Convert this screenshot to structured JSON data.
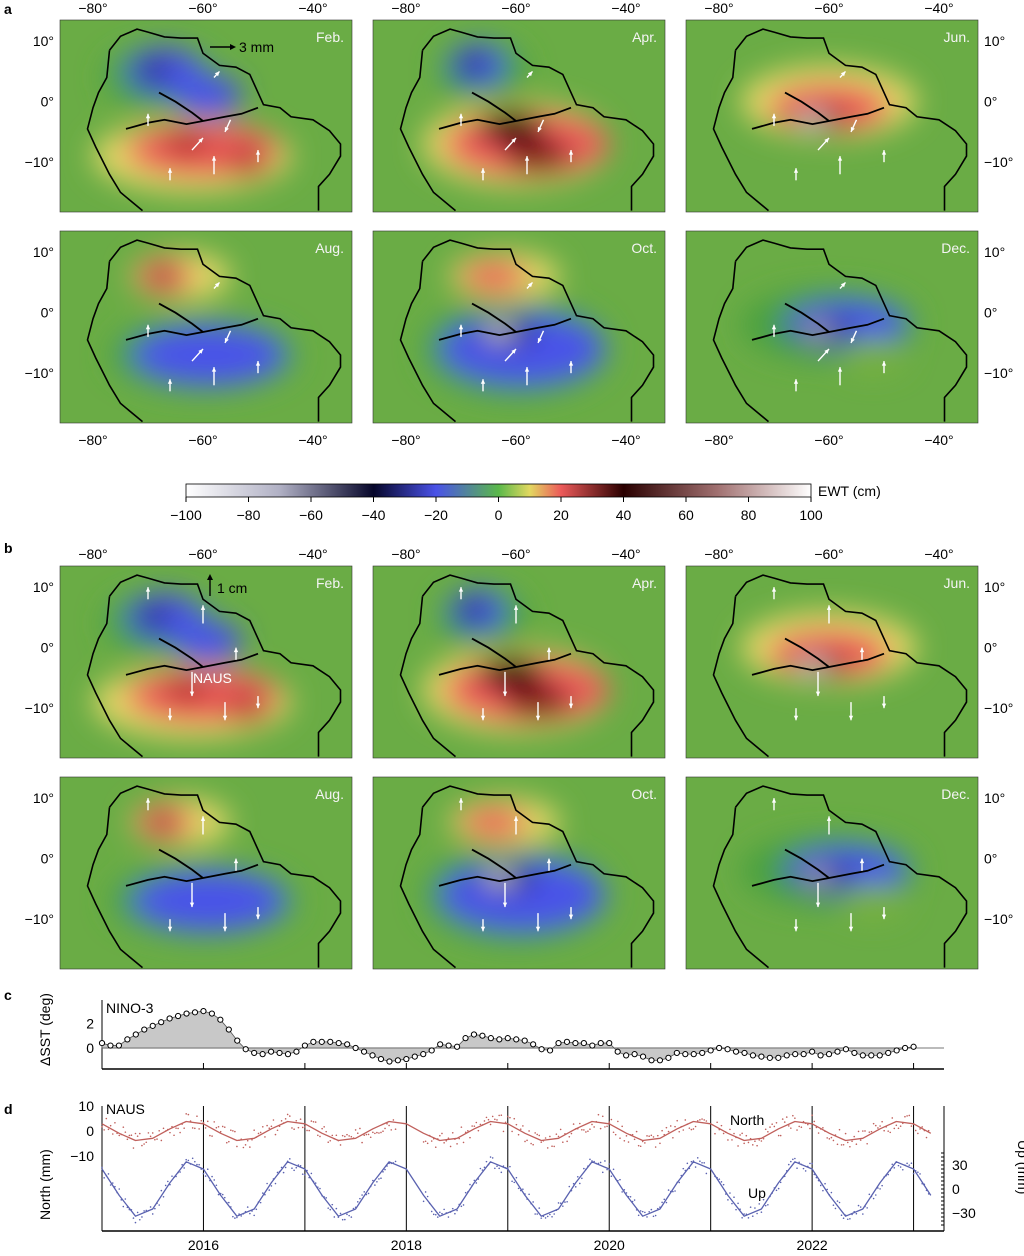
{
  "panel_labels": [
    "a",
    "b",
    "c",
    "d"
  ],
  "lon_ticks": [
    "−80°",
    "−60°",
    "−40°"
  ],
  "lat_ticks": [
    "10°",
    "0°",
    "−10°"
  ],
  "months": [
    "Feb.",
    "Apr.",
    "Jun.",
    "Aug.",
    "Oct.",
    "Dec."
  ],
  "scale_a": "3 mm",
  "scale_b": "1 cm",
  "station_label": "NAUS",
  "colors": {
    "background_land": "#6aac45",
    "arrow": "#ffffff",
    "coast": "#000000",
    "north": "#c0605c",
    "up": "#5a62b0",
    "fill": "#c8c8c8"
  },
  "colorbar": {
    "label": "EWT (cm)",
    "ticks": [
      "−100",
      "−80",
      "−60",
      "−40",
      "−20",
      "0",
      "20",
      "40",
      "60",
      "80",
      "100"
    ],
    "range": [
      -100,
      100
    ]
  },
  "chart_data": [
    {
      "type": "area",
      "panel": "c",
      "title": "NINO-3",
      "ylabel": "ΔSST (deg)",
      "yticks": [
        "2",
        "0"
      ],
      "xlim": [
        2015,
        2023.3
      ],
      "ylim": [
        -1.8,
        3.8
      ],
      "x_start": "2015-01",
      "frequency": "monthly",
      "values": [
        0.4,
        0.2,
        0.2,
        0.7,
        1.1,
        1.5,
        1.8,
        2.1,
        2.4,
        2.6,
        2.8,
        2.9,
        3.0,
        2.8,
        2.3,
        1.5,
        0.6,
        -0.1,
        -0.4,
        -0.5,
        -0.3,
        -0.4,
        -0.5,
        -0.3,
        0.2,
        0.5,
        0.5,
        0.5,
        0.4,
        0.3,
        0.0,
        -0.3,
        -0.6,
        -0.9,
        -1.1,
        -1.0,
        -0.9,
        -0.7,
        -0.5,
        -0.2,
        0.3,
        0.2,
        0.1,
        0.8,
        1.1,
        1.0,
        0.8,
        0.7,
        0.8,
        0.7,
        0.6,
        0.3,
        -0.1,
        -0.2,
        0.4,
        0.5,
        0.4,
        0.4,
        0.2,
        0.4,
        0.4,
        -0.3,
        -0.6,
        -0.5,
        -0.7,
        -1.0,
        -1.0,
        -0.8,
        -0.4,
        -0.5,
        -0.5,
        -0.4,
        -0.2,
        0.0,
        -0.1,
        -0.3,
        -0.4,
        -0.6,
        -0.7,
        -0.8,
        -0.8,
        -0.6,
        -0.5,
        -0.5,
        -0.3,
        -0.6,
        -0.5,
        -0.3,
        -0.1,
        -0.4,
        -0.6,
        -0.6,
        -0.6,
        -0.4,
        -0.2,
        0.0,
        0.1
      ]
    },
    {
      "type": "line",
      "panel": "d",
      "title": "NAUS",
      "ylabel": "North (mm)",
      "ylabel_right": "Up (mm)",
      "yticks": [
        "10",
        "0",
        "−10"
      ],
      "yticks_right": [
        "30",
        "0",
        "−30"
      ],
      "xticks": [
        "2016",
        "2018",
        "2020",
        "2022"
      ],
      "xlim": [
        2015,
        2023.3
      ],
      "ylim": [
        -28,
        12
      ],
      "ylim_right": [
        -50,
        50
      ],
      "x": [
        2015.0,
        2015.17,
        2015.33,
        2015.5,
        2015.67,
        2015.83,
        2016.0,
        2016.17,
        2016.33,
        2016.5,
        2016.67,
        2016.83,
        2017.0,
        2017.17,
        2017.33,
        2017.5,
        2017.67,
        2017.83,
        2018.0,
        2018.17,
        2018.33,
        2018.5,
        2018.67,
        2018.83,
        2019.0,
        2019.17,
        2019.33,
        2019.5,
        2019.67,
        2019.83,
        2020.0,
        2020.17,
        2020.33,
        2020.5,
        2020.67,
        2020.83,
        2021.0,
        2021.17,
        2021.33,
        2021.5,
        2021.67,
        2021.83,
        2022.0,
        2022.17,
        2022.33,
        2022.5,
        2022.67,
        2022.83,
        2023.0,
        2023.17
      ],
      "series": [
        {
          "name": "North",
          "axis": "left",
          "values": [
            2.9,
            -0.9,
            -3.8,
            -2.9,
            0.9,
            3.8,
            2.9,
            -0.9,
            -3.8,
            -2.9,
            0.9,
            3.8,
            2.9,
            -0.9,
            -3.8,
            -2.9,
            0.9,
            3.8,
            2.9,
            -0.9,
            -3.8,
            -2.9,
            0.9,
            3.8,
            2.9,
            -0.9,
            -3.8,
            -2.9,
            0.9,
            3.8,
            2.9,
            -0.9,
            -3.8,
            -2.9,
            0.9,
            3.8,
            2.9,
            -0.9,
            -3.8,
            -2.9,
            0.9,
            3.8,
            2.9,
            -0.9,
            -3.8,
            -2.9,
            0.9,
            3.8,
            2.9,
            -0.9
          ]
        },
        {
          "name": "Up",
          "axis": "right",
          "values": [
            25,
            -8,
            -34,
            -25,
            8,
            34,
            25,
            -8,
            -34,
            -25,
            8,
            34,
            25,
            -8,
            -34,
            -25,
            8,
            34,
            25,
            -8,
            -34,
            -25,
            8,
            34,
            25,
            -8,
            -34,
            -25,
            8,
            34,
            25,
            -8,
            -34,
            -25,
            8,
            34,
            25,
            -8,
            -34,
            -25,
            8,
            34,
            25,
            -8,
            -34,
            -25,
            8,
            34,
            25,
            -8
          ]
        }
      ],
      "vertical_lines": [
        2016,
        2017,
        2018,
        2019,
        2020,
        2021,
        2022,
        2023
      ]
    }
  ]
}
